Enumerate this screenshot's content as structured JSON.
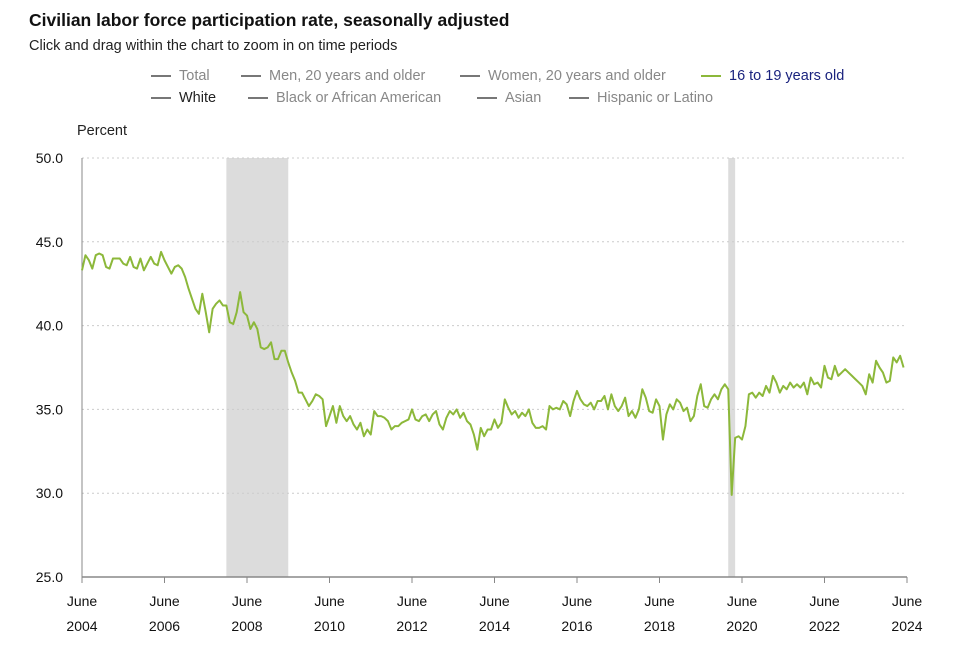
{
  "title": "Civilian labor force participation rate, seasonally adjusted",
  "subtitle": "Click and drag within the chart to zoom in on time periods",
  "legend": [
    {
      "label": "Total",
      "active": false
    },
    {
      "label": "Men, 20 years and older",
      "active": false
    },
    {
      "label": "Women, 20 years and older",
      "active": false
    },
    {
      "label": "16 to 19 years old",
      "active": true
    },
    {
      "label": "White",
      "active": false,
      "dark": true
    },
    {
      "label": "Black or African American",
      "active": false
    },
    {
      "label": "Asian",
      "active": false
    },
    {
      "label": "Hispanic or Latino",
      "active": false
    }
  ],
  "colors": {
    "series": "#8cb83a",
    "inactive_swatch": "#777777",
    "inactive_text": "#888888",
    "active_text": "#1a237e",
    "recession": "#dcdcdc",
    "grid": "#cccccc",
    "axis": "#888888"
  },
  "chart_data": {
    "type": "line",
    "ylabel": "Percent",
    "ylim": [
      25.0,
      50.0
    ],
    "y_ticks": [
      "25.0",
      "30.0",
      "35.0",
      "40.0",
      "45.0",
      "50.0"
    ],
    "x_ticks": [
      {
        "month": "June",
        "year": "2004"
      },
      {
        "month": "June",
        "year": "2006"
      },
      {
        "month": "June",
        "year": "2008"
      },
      {
        "month": "June",
        "year": "2010"
      },
      {
        "month": "June",
        "year": "2012"
      },
      {
        "month": "June",
        "year": "2014"
      },
      {
        "month": "June",
        "year": "2016"
      },
      {
        "month": "June",
        "year": "2018"
      },
      {
        "month": "June",
        "year": "2020"
      },
      {
        "month": "June",
        "year": "2022"
      },
      {
        "month": "June",
        "year": "2024"
      }
    ],
    "xlim": [
      "2004-06",
      "2024-07"
    ],
    "recessions": [
      [
        "2007-12",
        "2009-06"
      ],
      [
        "2020-02",
        "2020-04"
      ]
    ],
    "grid": true,
    "series": [
      {
        "name": "16 to 19 years old",
        "x_start": "2004-06",
        "frequency": "monthly",
        "values": [
          43.3,
          44.2,
          43.9,
          43.4,
          44.2,
          44.3,
          44.2,
          43.5,
          43.4,
          44.0,
          44.0,
          44.0,
          43.7,
          43.6,
          44.1,
          43.5,
          43.4,
          44.0,
          43.3,
          43.7,
          44.1,
          43.7,
          43.6,
          44.4,
          43.9,
          43.5,
          43.1,
          43.5,
          43.6,
          43.4,
          42.9,
          42.2,
          41.6,
          41.0,
          40.7,
          41.9,
          40.8,
          39.6,
          41.0,
          41.3,
          41.5,
          41.2,
          41.2,
          40.2,
          40.1,
          40.8,
          42.0,
          40.8,
          40.6,
          39.8,
          40.2,
          39.8,
          38.7,
          38.6,
          38.7,
          39.0,
          38.0,
          38.0,
          38.5,
          38.5,
          37.8,
          37.2,
          36.7,
          36.0,
          36.0,
          35.6,
          35.2,
          35.5,
          35.9,
          35.8,
          35.6,
          34.0,
          34.6,
          35.2,
          34.2,
          35.2,
          34.6,
          34.3,
          34.6,
          34.1,
          33.8,
          34.2,
          33.4,
          33.8,
          33.5,
          34.9,
          34.6,
          34.6,
          34.5,
          34.3,
          33.8,
          34.0,
          34.0,
          34.2,
          34.3,
          34.4,
          35.0,
          34.4,
          34.3,
          34.6,
          34.7,
          34.3,
          34.7,
          34.9,
          34.1,
          33.8,
          34.5,
          34.9,
          34.7,
          35.0,
          34.5,
          34.8,
          34.3,
          34.1,
          33.5,
          32.6,
          33.9,
          33.4,
          33.8,
          33.8,
          34.4,
          33.9,
          34.2,
          35.6,
          35.1,
          34.7,
          34.9,
          34.5,
          34.8,
          34.6,
          35.0,
          34.2,
          33.9,
          33.9,
          34.0,
          33.8,
          35.2,
          35.0,
          35.1,
          35.0,
          35.5,
          35.3,
          34.6,
          35.5,
          36.1,
          35.6,
          35.3,
          35.2,
          35.4,
          35.0,
          35.5,
          35.5,
          35.8,
          35.0,
          35.9,
          35.2,
          34.9,
          35.2,
          35.7,
          34.6,
          34.9,
          34.5,
          35.0,
          36.2,
          35.7,
          34.9,
          34.8,
          35.6,
          35.2,
          33.2,
          34.7,
          35.3,
          35.0,
          35.6,
          35.4,
          34.9,
          35.1,
          34.3,
          34.6,
          35.8,
          36.5,
          35.2,
          35.1,
          35.6,
          35.9,
          35.6,
          36.2,
          36.5,
          36.2,
          29.9,
          33.3,
          33.4,
          33.2,
          34.0,
          35.9,
          36.0,
          35.7,
          36.0,
          35.8,
          36.4,
          36.0,
          37.0,
          36.6,
          36.0,
          36.4,
          36.2,
          36.6,
          36.3,
          36.5,
          36.3,
          36.6,
          35.9,
          36.9,
          36.5,
          36.6,
          36.3,
          37.6,
          36.9,
          36.8,
          37.6,
          37.0,
          37.2,
          37.4,
          37.2,
          37.0,
          36.8,
          36.6,
          36.4,
          35.9,
          37.1,
          36.6,
          37.9,
          37.5,
          37.2,
          36.6,
          36.7,
          38.1,
          37.8,
          38.2,
          37.5
        ]
      }
    ]
  }
}
